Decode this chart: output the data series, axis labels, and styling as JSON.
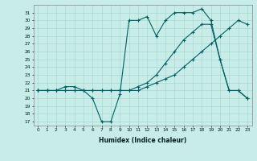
{
  "xlabel": "Humidex (Indice chaleur)",
  "x_values": [
    0,
    1,
    2,
    3,
    4,
    5,
    6,
    7,
    8,
    9,
    10,
    11,
    12,
    13,
    14,
    15,
    16,
    17,
    18,
    19,
    20,
    21,
    22,
    23
  ],
  "line1": [
    21,
    21,
    21,
    21.5,
    21.5,
    21,
    20,
    17,
    17,
    20.5,
    30,
    30,
    30.5,
    28,
    30,
    31,
    31,
    31,
    31.5,
    30,
    25,
    21,
    21,
    20
  ],
  "line2": [
    21,
    21,
    21,
    21,
    21,
    21,
    21,
    21,
    21,
    21,
    21,
    21,
    21.5,
    22,
    22.5,
    23,
    24,
    25,
    26,
    27,
    28,
    29,
    30,
    29.5
  ],
  "line3": [
    21,
    21,
    21,
    21,
    21,
    21,
    21,
    21,
    21,
    21,
    21,
    21.5,
    22,
    23,
    24.5,
    26,
    27.5,
    28.5,
    29.5,
    29.5,
    25,
    21,
    21,
    20
  ],
  "line_color": "#006060",
  "marker": "+",
  "markersize": 3.5,
  "linewidth": 0.8,
  "bg_color": "#c8ece8",
  "grid_color": "#a8d8d0",
  "ylim": [
    16.5,
    32
  ],
  "yticks": [
    17,
    18,
    19,
    20,
    21,
    22,
    23,
    24,
    25,
    26,
    27,
    28,
    29,
    30,
    31
  ],
  "xlim": [
    -0.5,
    23.5
  ],
  "xticks": [
    0,
    1,
    2,
    3,
    4,
    5,
    6,
    7,
    8,
    9,
    10,
    11,
    12,
    13,
    14,
    15,
    16,
    17,
    18,
    19,
    20,
    21,
    22,
    23
  ]
}
